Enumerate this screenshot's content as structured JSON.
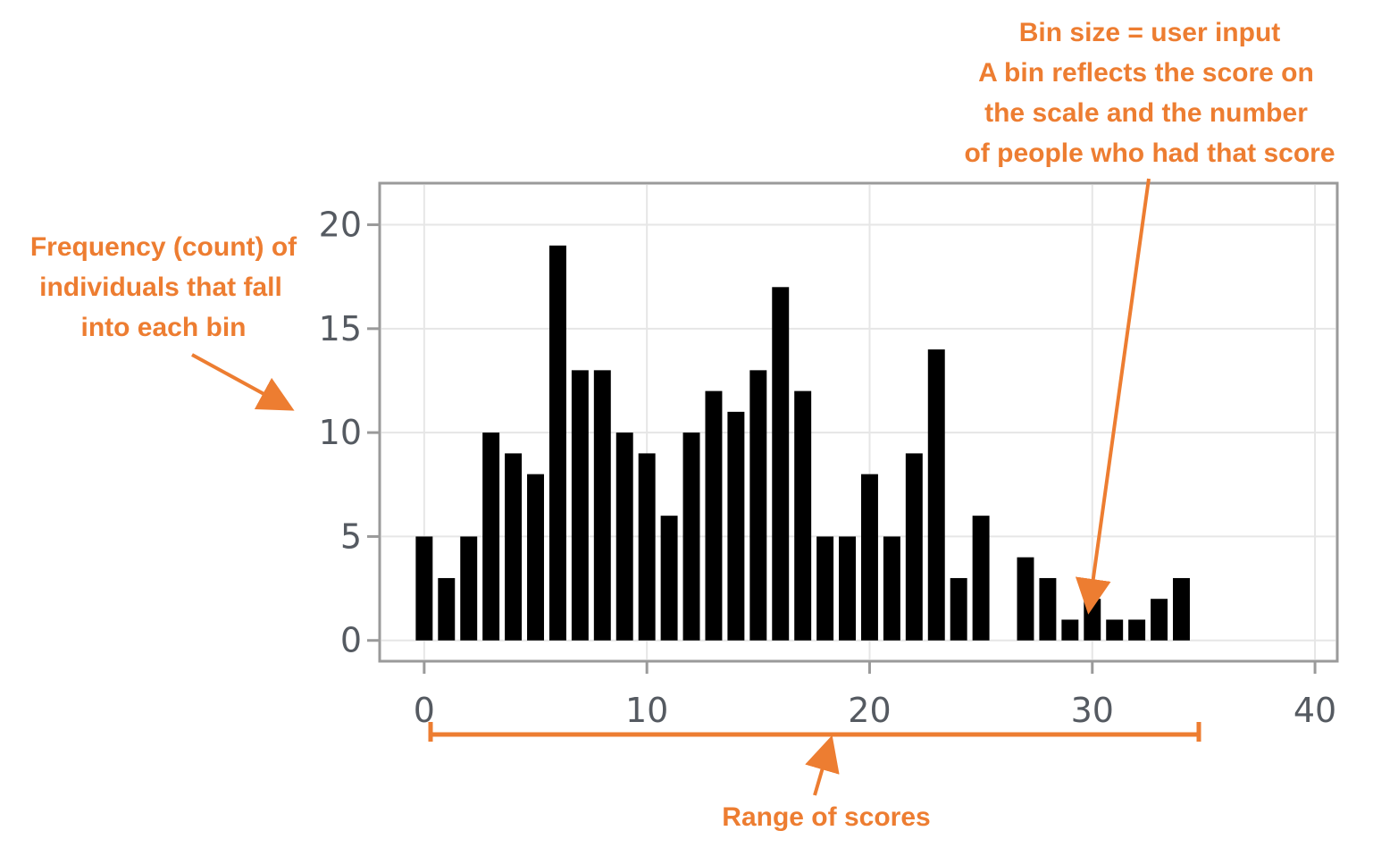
{
  "chart_data": {
    "type": "bar",
    "categories": [
      0,
      1,
      2,
      3,
      4,
      5,
      6,
      7,
      8,
      9,
      10,
      11,
      12,
      13,
      14,
      15,
      16,
      17,
      18,
      19,
      20,
      21,
      22,
      23,
      24,
      25,
      26,
      27,
      28,
      29,
      30,
      31,
      32,
      33,
      34
    ],
    "values": [
      5,
      3,
      5,
      10,
      9,
      8,
      19,
      13,
      13,
      10,
      9,
      6,
      10,
      12,
      11,
      13,
      17,
      12,
      5,
      5,
      8,
      5,
      9,
      14,
      3,
      6,
      0,
      4,
      3,
      1,
      2,
      1,
      1,
      2,
      3
    ],
    "xlim": [
      -2,
      41
    ],
    "ylim": [
      -1,
      22
    ],
    "x_ticks": [
      0,
      10,
      20,
      30,
      40
    ],
    "y_ticks": [
      0,
      5,
      10,
      15,
      20
    ],
    "x_tick_labels": [
      "0",
      "10",
      "20",
      "30",
      "40"
    ],
    "y_tick_labels": [
      "0",
      "5",
      "10",
      "15",
      "20"
    ],
    "grid": true,
    "bar_color": "#000000",
    "title": "",
    "xlabel": "",
    "ylabel": ""
  },
  "annotations": {
    "bin": {
      "lines": [
        "Bin size = user input",
        "A bin reflects the score on",
        "the scale and the number",
        "of people who had that score"
      ]
    },
    "frequency": {
      "lines": [
        "Frequency (count) of",
        "individuals that fall",
        "into each bin"
      ]
    },
    "range": {
      "text": "Range of scores"
    },
    "color": "#ed7d31"
  }
}
